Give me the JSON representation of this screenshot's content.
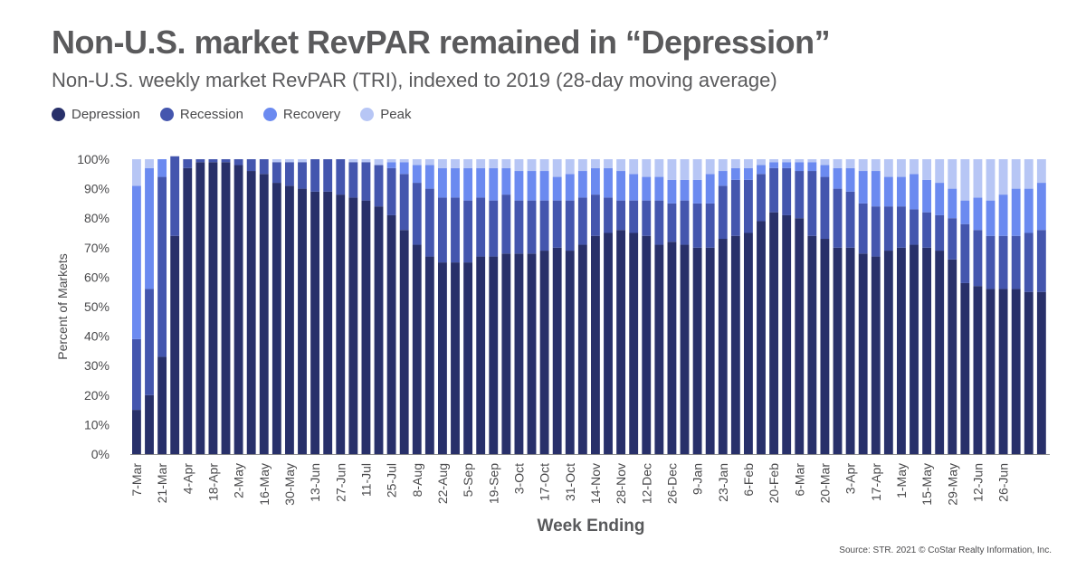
{
  "header": {
    "title": "Non-U.S. market RevPAR remained in “Depression”",
    "subtitle": "Non-U.S. weekly market RevPAR (TRI), indexed to 2019 (28-day moving average)"
  },
  "footer": {
    "source": "Source: STR. 2021 © CoStar Realty Information, Inc."
  },
  "chart_data": {
    "type": "bar",
    "stacked": true,
    "xlabel": "Week Ending",
    "ylabel": "Percent of Markets",
    "ylim": [
      0,
      100
    ],
    "y_ticks": [
      "0%",
      "10%",
      "20%",
      "30%",
      "40%",
      "50%",
      "60%",
      "70%",
      "80%",
      "90%",
      "100%"
    ],
    "legend_position": "top-left",
    "grid": false,
    "x_tick_labels": [
      "7-Mar",
      "21-Mar",
      "4-Apr",
      "18-Apr",
      "2-May",
      "16-May",
      "30-May",
      "13-Jun",
      "27-Jun",
      "11-Jul",
      "25-Jul",
      "8-Aug",
      "22-Aug",
      "5-Sep",
      "19-Sep",
      "3-Oct",
      "17-Oct",
      "31-Oct",
      "14-Nov",
      "28-Nov",
      "12-Dec",
      "26-Dec",
      "9-Jan",
      "23-Jan",
      "6-Feb",
      "20-Feb",
      "6-Mar",
      "20-Mar",
      "3-Apr",
      "17-Apr",
      "1-May",
      "15-May",
      "29-May",
      "12-Jun",
      "26-Jun"
    ],
    "bar_count": 72,
    "series": [
      {
        "name": "Depression",
        "color": "#28306a",
        "values": [
          15,
          20,
          33,
          74,
          97,
          99,
          99,
          99,
          98,
          96,
          95,
          92,
          91,
          90,
          89,
          89,
          88,
          87,
          86,
          84,
          81,
          76,
          71,
          67,
          65,
          65,
          65,
          67,
          67,
          68,
          68,
          68,
          69,
          70,
          69,
          71,
          74,
          75,
          76,
          75,
          74,
          71,
          72,
          71,
          70,
          70,
          73,
          74,
          75,
          79,
          82,
          81,
          80,
          74,
          73,
          70,
          70,
          68,
          67,
          69,
          70,
          71,
          70,
          69,
          66,
          58,
          57,
          56,
          56,
          56,
          55,
          55
        ]
      },
      {
        "name": "Recession",
        "color": "#4456ae",
        "values": [
          24,
          36,
          61,
          27,
          3,
          1,
          1,
          1,
          2,
          4,
          5,
          7,
          8,
          9,
          11,
          11,
          12,
          12,
          13,
          14,
          16,
          19,
          21,
          23,
          22,
          22,
          21,
          20,
          19,
          20,
          18,
          18,
          17,
          16,
          17,
          16,
          14,
          12,
          10,
          11,
          12,
          15,
          13,
          15,
          15,
          15,
          18,
          19,
          18,
          16,
          15,
          16,
          16,
          22,
          21,
          20,
          19,
          17,
          17,
          15,
          14,
          12,
          12,
          12,
          14,
          20,
          19,
          18,
          18,
          18,
          20,
          21
        ]
      },
      {
        "name": "Recovery",
        "color": "#6b8af0",
        "values": [
          52,
          41,
          6,
          0,
          0,
          0,
          0,
          0,
          0,
          0,
          0,
          0,
          0,
          0,
          0,
          0,
          0,
          0,
          0,
          0,
          2,
          4,
          6,
          8,
          10,
          10,
          11,
          10,
          11,
          9,
          10,
          10,
          10,
          8,
          9,
          9,
          9,
          10,
          10,
          9,
          8,
          8,
          8,
          7,
          8,
          10,
          5,
          4,
          4,
          3,
          2,
          2,
          3,
          3,
          4,
          7,
          8,
          11,
          12,
          10,
          10,
          12,
          11,
          11,
          10,
          8,
          11,
          12,
          14,
          16,
          15,
          16
        ]
      },
      {
        "name": "Peak",
        "color": "#b7c6f5",
        "values": [
          9,
          3,
          0,
          0,
          0,
          0,
          0,
          0,
          0,
          0,
          0,
          1,
          1,
          1,
          0,
          0,
          0,
          1,
          1,
          2,
          1,
          1,
          2,
          2,
          3,
          3,
          3,
          3,
          3,
          3,
          4,
          4,
          4,
          6,
          5,
          4,
          3,
          3,
          4,
          5,
          6,
          6,
          7,
          7,
          7,
          5,
          4,
          3,
          3,
          2,
          1,
          1,
          1,
          1,
          2,
          3,
          3,
          4,
          4,
          6,
          6,
          5,
          7,
          8,
          10,
          14,
          13,
          14,
          12,
          10,
          10,
          8
        ]
      }
    ]
  }
}
